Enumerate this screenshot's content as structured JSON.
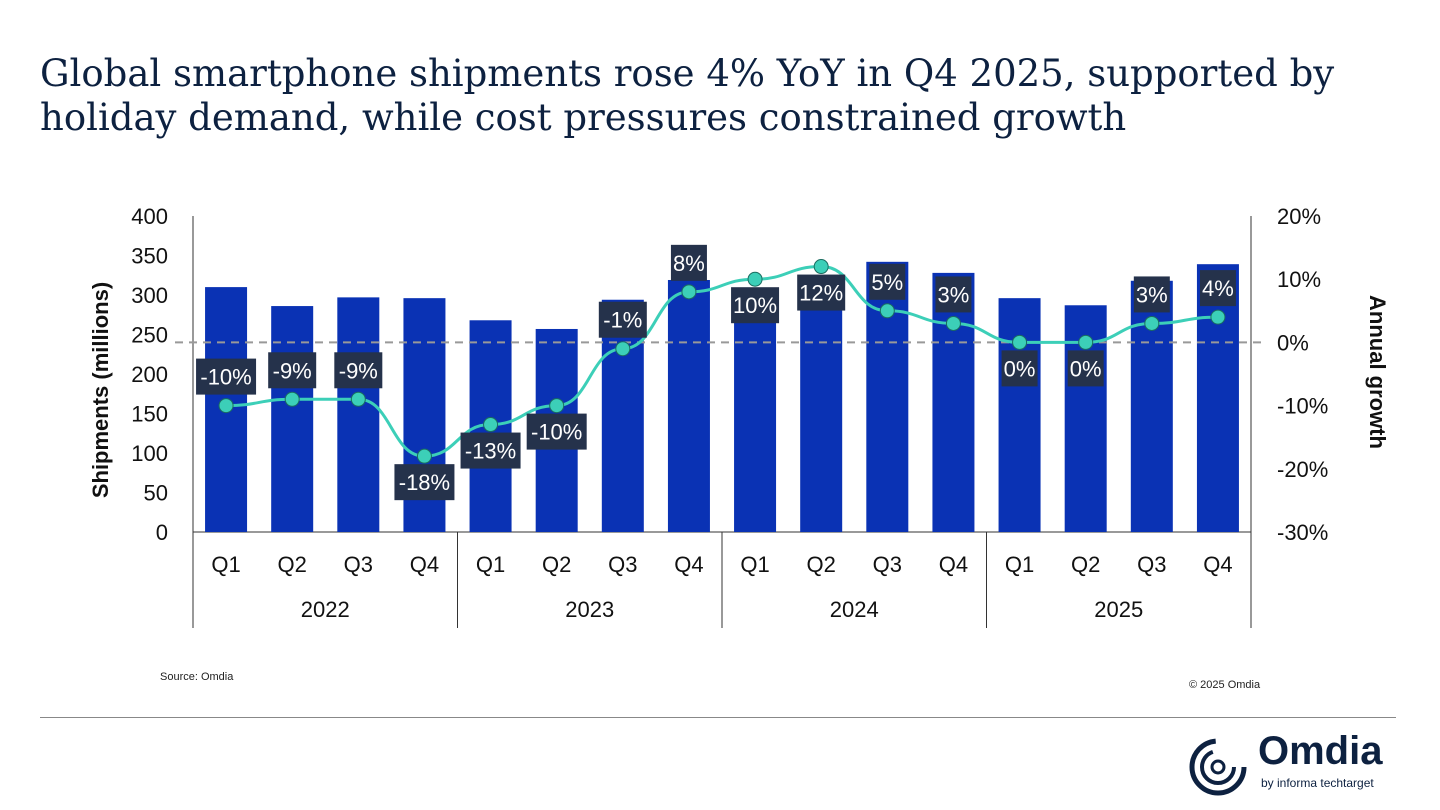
{
  "chart_data": {
    "type": "bar+line",
    "title": "Global smartphone shipments rose 4% YoY in Q4 2025, supported by holiday demand, while cost pressures constrained growth",
    "ylabel": "Shipments (millions)",
    "y2label": "Annual growth",
    "ylim": [
      0,
      400
    ],
    "y2lim": [
      -30,
      20
    ],
    "yticks": [
      "0",
      "50",
      "100",
      "150",
      "200",
      "250",
      "300",
      "350",
      "400"
    ],
    "y2ticks": [
      "-30%",
      "-20%",
      "-10%",
      "0%",
      "10%",
      "20%"
    ],
    "quarters": [
      "Q1",
      "Q2",
      "Q3",
      "Q4",
      "Q1",
      "Q2",
      "Q3",
      "Q4",
      "Q1",
      "Q2",
      "Q3",
      "Q4",
      "Q1",
      "Q2",
      "Q3",
      "Q4"
    ],
    "years": [
      "2022",
      "2023",
      "2024",
      "2025"
    ],
    "shipments": [
      310,
      286,
      297,
      296,
      268,
      257,
      294,
      319,
      296,
      288,
      342,
      328,
      296,
      287,
      318,
      339
    ],
    "growth": [
      -10,
      -9,
      -9,
      -18,
      -13,
      -10,
      -1,
      8,
      10,
      12,
      5,
      3,
      0,
      0,
      3,
      4
    ],
    "growth_labels": [
      "-10%",
      "-9%",
      "-9%",
      "-18%",
      "-13%",
      "-10%",
      "-1%",
      "8%",
      "10%",
      "12%",
      "5%",
      "3%",
      "0%",
      "0%",
      "3%",
      "4%"
    ],
    "bar_color": "#0a32b4",
    "line_color": "#3ccfb8",
    "label_bg": "#25324b"
  },
  "footer": {
    "source": "Source: Omdia",
    "copyright": "© 2025 Omdia"
  },
  "logo": {
    "name": "Omdia",
    "tagline": "by informa techtarget"
  }
}
